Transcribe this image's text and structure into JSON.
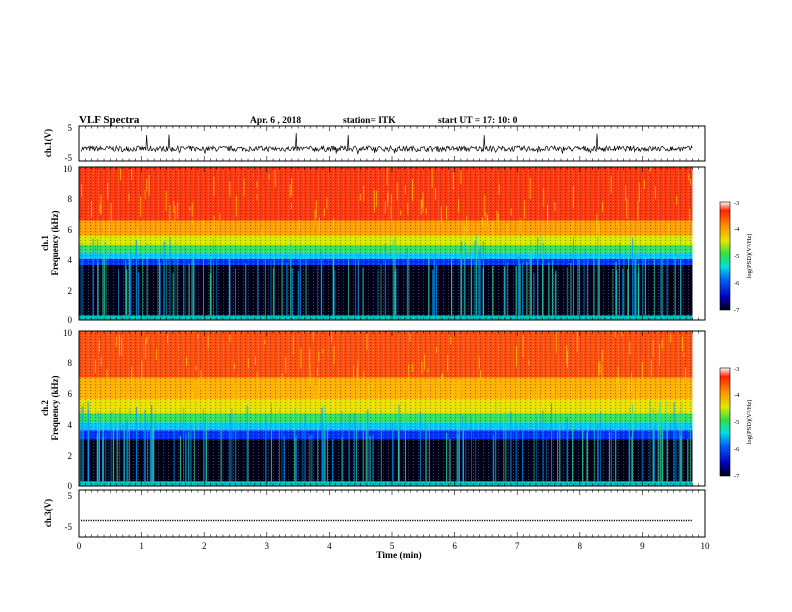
{
  "header": {
    "title": "VLF  Spectra",
    "date": "Apr. 6   , 2018",
    "station": "station= ITK",
    "start": "start  UT  =   17: 10: 0"
  },
  "chart_data": [
    {
      "type": "line",
      "panel": "ch1_waveform",
      "ylabel": "ch.1(V)",
      "ylim": [
        -5,
        5
      ],
      "yticks": [
        "5",
        "-5"
      ],
      "xlim": [
        0,
        10
      ],
      "baseline": -1.5,
      "spike_top": 3,
      "spike_bottom": -3
    },
    {
      "type": "heatmap",
      "panel": "ch1_spectrogram",
      "ylabel_top": "ch.1",
      "ylabel": "Frequency  (kHz)",
      "ylim": [
        0,
        10
      ],
      "yticks": [
        "0",
        "2",
        "4",
        "6",
        "8",
        "10"
      ],
      "xlim": [
        0,
        9.8
      ],
      "bands": [
        {
          "from": 0,
          "to": 0.3,
          "color": "#00c0c0"
        },
        {
          "from": 0.3,
          "to": 3.6,
          "color": "#000018"
        },
        {
          "from": 3.6,
          "to": 4.0,
          "color": "#0030ff"
        },
        {
          "from": 4.0,
          "to": 4.4,
          "color": "#00c8ff"
        },
        {
          "from": 4.4,
          "to": 4.9,
          "color": "#30e060"
        },
        {
          "from": 4.9,
          "to": 5.5,
          "color": "#d8e800"
        },
        {
          "from": 5.5,
          "to": 6.5,
          "color": "#ffa000"
        },
        {
          "from": 6.5,
          "to": 10,
          "color": "#ff3a10"
        }
      ],
      "colorbar": {
        "label": "log(PSD)(V²/Hz)",
        "range": [
          -7,
          -3
        ],
        "ticks": [
          "-3",
          "-4",
          "-5",
          "-6",
          "-7"
        ]
      }
    },
    {
      "type": "heatmap",
      "panel": "ch2_spectrogram",
      "ylabel_top": "ch.2",
      "ylabel": "Frequency  (kHz)",
      "ylim": [
        0,
        10
      ],
      "yticks": [
        "0",
        "2",
        "4",
        "6",
        "8",
        "10"
      ],
      "xlim": [
        0,
        9.8
      ],
      "bands": [
        {
          "from": 0,
          "to": 0.3,
          "color": "#00c0c0"
        },
        {
          "from": 0.3,
          "to": 3.0,
          "color": "#000018"
        },
        {
          "from": 3.0,
          "to": 3.6,
          "color": "#0030ff"
        },
        {
          "from": 3.6,
          "to": 4.1,
          "color": "#00c8ff"
        },
        {
          "from": 4.1,
          "to": 4.7,
          "color": "#30e060"
        },
        {
          "from": 4.7,
          "to": 5.6,
          "color": "#e8e000"
        },
        {
          "from": 5.6,
          "to": 7.0,
          "color": "#ffb000"
        },
        {
          "from": 7.0,
          "to": 10,
          "color": "#ff5010"
        }
      ],
      "colorbar": {
        "label": "log(PSD)(V²/Hz)",
        "range": [
          -7,
          -3
        ],
        "ticks": [
          "-3",
          "-4",
          "-5",
          "-6",
          "-7"
        ]
      }
    },
    {
      "type": "line",
      "panel": "ch3_waveform",
      "ylabel": "ch.3(V)",
      "ylim": [
        -5,
        5
      ],
      "yticks": [
        "5",
        "-5"
      ],
      "xlim": [
        0,
        10
      ],
      "baseline": -1.5
    }
  ],
  "xaxis": {
    "label": "Time  (min)",
    "ticks": [
      "0",
      "1",
      "2",
      "3",
      "4",
      "5",
      "6",
      "7",
      "8",
      "9",
      "10"
    ]
  }
}
